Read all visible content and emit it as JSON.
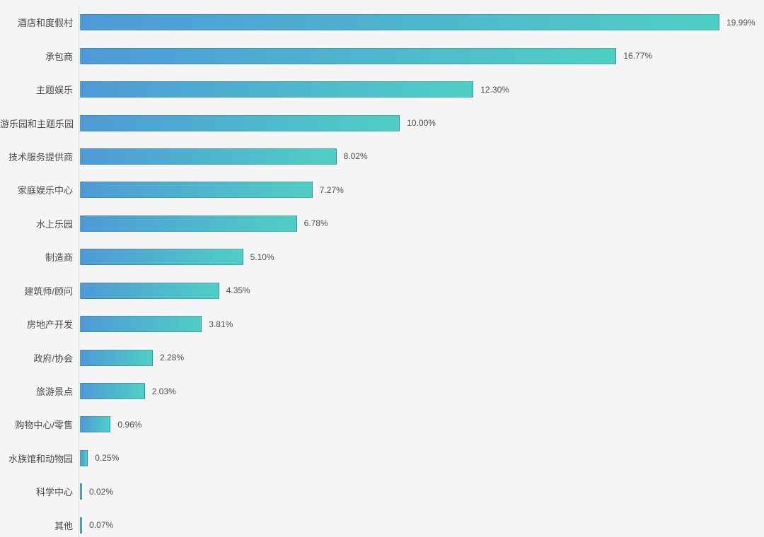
{
  "chart_data": {
    "type": "bar",
    "orientation": "horizontal",
    "title": "",
    "xlabel": "",
    "ylabel": "",
    "grid": false,
    "legend": null,
    "xlim": [
      0,
      21.4
    ],
    "categories": [
      "酒店和度假村",
      "承包商",
      "主题娱乐",
      "游乐园和主题乐园",
      "技术服务提供商",
      "家庭娱乐中心",
      "水上乐园",
      "制造商",
      "建筑师/顾问",
      "房地产开发",
      "政府/协会",
      "旅游景点",
      "购物中心/零售",
      "水族馆和动物园",
      "科学中心",
      "其他"
    ],
    "values": [
      19.99,
      16.77,
      12.3,
      10.0,
      8.02,
      7.27,
      6.78,
      5.1,
      4.35,
      3.81,
      2.28,
      2.03,
      0.96,
      0.25,
      0.02,
      0.07
    ],
    "value_labels": [
      "19.99%",
      "16.77%",
      "12.30%",
      "10.00%",
      "8.02%",
      "7.27%",
      "6.78%",
      "5.10%",
      "4.35%",
      "3.81%",
      "2.28%",
      "2.03%",
      "0.96%",
      "0.25%",
      "0.02%",
      "0.07%"
    ]
  },
  "colors": {
    "background": "#f5f5f6",
    "axis_line": "#dadadc",
    "label_text": "#4a4a4b",
    "value_text": "#4c4c4d",
    "bar_gradient_start": "#4E9AD8",
    "bar_gradient_end": "#4FCFC4"
  }
}
